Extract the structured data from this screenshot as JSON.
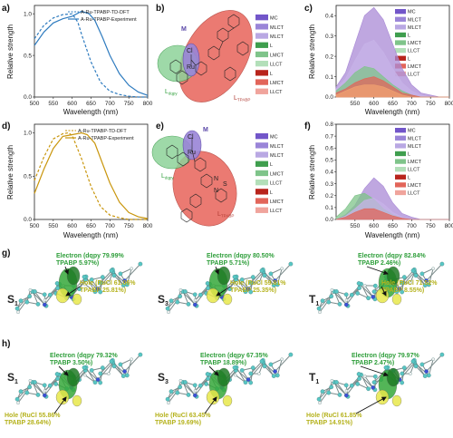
{
  "panels": {
    "a": {
      "label": "a)",
      "ylabel": "Relative strength",
      "xlabel": "Wavelength (nm)",
      "legend": [
        "A-Ru-TPABP-TD-DFT",
        "A-Ru-TPABP-Experiment"
      ],
      "color": "#2e7bbf",
      "xticks": [
        "500",
        "550",
        "600",
        "650",
        "700",
        "750",
        "800"
      ],
      "yticks": [
        "0.0",
        "0.5",
        "1.0"
      ]
    },
    "b": {
      "label": "b)",
      "M": "M",
      "L_dqpy": "L",
      "L_dqpy_sub": "dqpy",
      "L_TPABP": "L",
      "L_TPABP_sub": "TPABP",
      "atoms": [
        "Cl",
        "Ru",
        "N",
        "N",
        "S"
      ]
    },
    "c": {
      "label": "c)",
      "ylabel": "Relative strength",
      "xlabel": "Wavelength (nm)",
      "xticks": [
        "550",
        "600",
        "650",
        "700",
        "750",
        "800"
      ],
      "yticks": [
        "0.0",
        "0.1",
        "0.2",
        "0.3",
        "0.4"
      ],
      "legend": [
        "MC",
        "ML",
        "CT",
        "ML",
        "CT",
        "L",
        "LMCT",
        "LL",
        "CT",
        "L",
        "LMCT",
        "LL",
        "CT"
      ]
    },
    "d": {
      "label": "d)",
      "ylabel": "Relative strength",
      "xlabel": "Wavelength (nm)",
      "legend": [
        "A-Ru-TPABP-TD-DFT",
        "A-Ru-TPABP-Experiment"
      ],
      "color": "#c9960d",
      "xticks": [
        "500",
        "550",
        "600",
        "650",
        "700",
        "750",
        "800"
      ],
      "yticks": [
        "0.0",
        "0.5",
        "1.0"
      ]
    },
    "e": {
      "label": "e)",
      "M": "M",
      "L_dqpy": "L",
      "L_dqpy_sub": "dqpy",
      "L_TPABP": "L",
      "L_TPABP_sub": "TPABP",
      "atoms": [
        "Cl",
        "Ru",
        "S",
        "N",
        "N"
      ]
    },
    "f": {
      "label": "f)",
      "ylabel": "Relative strength",
      "xlabel": "Wavelength (nm)",
      "xticks": [
        "550",
        "600",
        "650",
        "700",
        "750",
        "800"
      ],
      "yticks": [
        "0.0",
        "0.1",
        "0.2",
        "0.3",
        "0.4",
        "0.5",
        "0.6",
        "0.7",
        "0.8"
      ]
    },
    "g": {
      "label": "g)",
      "states": [
        {
          "name": "S",
          "sub": "1",
          "electron": "Electron (dqpy 79.99%",
          "electron2": "TPABP 5.97%)",
          "hole": "Hole (RuCl 61.06%",
          "hole2": "TPABP 25.81%)"
        },
        {
          "name": "S",
          "sub": "3",
          "electron": "Electron (dqpy 80.50%",
          "electron2": "TPABP 5.71%)",
          "hole": "Hole (RuCl 59.81%",
          "hole2": "TPABP 25.35%)"
        },
        {
          "name": "T",
          "sub": "1",
          "electron": "Electron (dqpy 82.84%",
          "electron2": "TPABP 2.46%)",
          "hole": "Hole (RuCl 71.52%",
          "hole2": "TPABP 8.55%)"
        }
      ]
    },
    "h": {
      "label": "h)",
      "states": [
        {
          "name": "S",
          "sub": "1",
          "electron": "Electron (dqpy 79.32%",
          "electron2": "TPABP 3.50%)",
          "hole": "Hole (RuCl 55.86%",
          "hole2": "TPABP 28.64%)"
        },
        {
          "name": "S",
          "sub": "3",
          "electron": "Electron (dqpy 67.35%",
          "electron2": "TPABP 18.89%)",
          "hole": "Hole (RuCl 63.45%",
          "hole2": "TPABP 19.69%)"
        },
        {
          "name": "T",
          "sub": "1",
          "electron": "Electron (dqpy 79.97%",
          "electron2": "TPABP 2.47%)",
          "hole": "Hole (RuCl 61.85%",
          "hole2": "TPABP 14.91%)"
        }
      ]
    }
  },
  "chart_data": [
    {
      "type": "line",
      "panel": "a",
      "xlabel": "Wavelength (nm)",
      "ylabel": "Relative strength",
      "xlim": [
        500,
        800
      ],
      "ylim": [
        0,
        1.1
      ],
      "series": [
        {
          "name": "A-Ru-TPABP-TD-DFT",
          "style": "dashed",
          "x": [
            500,
            525,
            550,
            575,
            600,
            615,
            625,
            650,
            675,
            700,
            725,
            750,
            775,
            800
          ],
          "y": [
            0.7,
            0.86,
            0.95,
            0.99,
            1.0,
            0.9,
            0.75,
            0.42,
            0.18,
            0.07,
            0.03,
            0.01,
            0.0,
            0.0
          ]
        },
        {
          "name": "A-Ru-TPABP-Experiment",
          "style": "solid",
          "x": [
            500,
            525,
            550,
            575,
            600,
            625,
            645,
            660,
            680,
            700,
            725,
            750,
            775,
            800
          ],
          "y": [
            0.62,
            0.78,
            0.89,
            0.94,
            0.97,
            1.03,
            1.0,
            0.92,
            0.72,
            0.5,
            0.28,
            0.14,
            0.06,
            0.02
          ]
        }
      ]
    },
    {
      "type": "line",
      "panel": "d",
      "xlabel": "Wavelength (nm)",
      "ylabel": "Relative strength",
      "xlim": [
        500,
        800
      ],
      "ylim": [
        0,
        1.1
      ],
      "series": [
        {
          "name": "A-Ru-TPABP-TD-DFT",
          "style": "dashed",
          "x": [
            500,
            525,
            550,
            575,
            590,
            600,
            625,
            650,
            675,
            700,
            725,
            750,
            775,
            800
          ],
          "y": [
            0.45,
            0.72,
            0.93,
            0.99,
            1.0,
            0.97,
            0.7,
            0.38,
            0.15,
            0.05,
            0.02,
            0.0,
            0.0,
            0.0
          ]
        },
        {
          "name": "A-Ru-TPABP-Experiment",
          "style": "solid",
          "x": [
            500,
            525,
            550,
            575,
            600,
            625,
            640,
            660,
            680,
            700,
            725,
            750,
            775,
            800
          ],
          "y": [
            0.3,
            0.58,
            0.82,
            0.96,
            0.98,
            1.0,
            0.98,
            0.88,
            0.65,
            0.42,
            0.2,
            0.08,
            0.03,
            0.01
          ]
        }
      ]
    },
    {
      "type": "area",
      "panel": "c",
      "xlabel": "Wavelength (nm)",
      "ylabel": "Relative strength",
      "xlim": [
        500,
        800
      ],
      "ylim": [
        0,
        0.45
      ],
      "x": [
        500,
        525,
        550,
        575,
        600,
        625,
        650,
        675,
        700,
        725,
        750,
        775,
        800
      ],
      "series": [
        {
          "color": "#a98ad6",
          "values": [
            0.05,
            0.12,
            0.26,
            0.4,
            0.44,
            0.38,
            0.26,
            0.14,
            0.06,
            0.02,
            0.01,
            0.0,
            0.0
          ]
        },
        {
          "color": "#c7b3e8",
          "values": [
            0.04,
            0.09,
            0.18,
            0.26,
            0.28,
            0.22,
            0.14,
            0.07,
            0.03,
            0.01,
            0.0,
            0.0,
            0.0
          ]
        },
        {
          "color": "#7fc48a",
          "values": [
            0.03,
            0.07,
            0.12,
            0.15,
            0.14,
            0.1,
            0.06,
            0.03,
            0.01,
            0.0,
            0.0,
            0.0,
            0.0
          ]
        },
        {
          "color": "#e2655a",
          "values": [
            0.02,
            0.04,
            0.07,
            0.09,
            0.1,
            0.08,
            0.05,
            0.02,
            0.01,
            0.0,
            0.0,
            0.0,
            0.0
          ]
        },
        {
          "color": "#f0a070",
          "values": [
            0.01,
            0.03,
            0.05,
            0.06,
            0.06,
            0.05,
            0.03,
            0.01,
            0.0,
            0.0,
            0.0,
            0.0,
            0.0
          ]
        }
      ]
    },
    {
      "type": "area",
      "panel": "f",
      "xlabel": "Wavelength (nm)",
      "ylabel": "Relative strength",
      "xlim": [
        500,
        800
      ],
      "ylim": [
        0,
        0.8
      ],
      "x": [
        500,
        525,
        550,
        575,
        600,
        625,
        650,
        675,
        700,
        725,
        750,
        775,
        800
      ],
      "series": [
        {
          "color": "#a98ad6",
          "values": [
            0.0,
            0.04,
            0.12,
            0.26,
            0.35,
            0.28,
            0.14,
            0.05,
            0.02,
            0.0,
            0.0,
            0.0,
            0.0
          ]
        },
        {
          "color": "#7fc48a",
          "values": [
            0.02,
            0.09,
            0.2,
            0.22,
            0.17,
            0.09,
            0.04,
            0.01,
            0.0,
            0.0,
            0.0,
            0.0,
            0.0
          ]
        },
        {
          "color": "#c7b3e8",
          "values": [
            0.0,
            0.03,
            0.09,
            0.16,
            0.18,
            0.13,
            0.06,
            0.02,
            0.0,
            0.0,
            0.0,
            0.0,
            0.0
          ]
        },
        {
          "color": "#e2655a",
          "values": [
            0.0,
            0.02,
            0.06,
            0.09,
            0.09,
            0.06,
            0.03,
            0.01,
            0.0,
            0.0,
            0.0,
            0.0,
            0.0
          ]
        }
      ]
    }
  ]
}
